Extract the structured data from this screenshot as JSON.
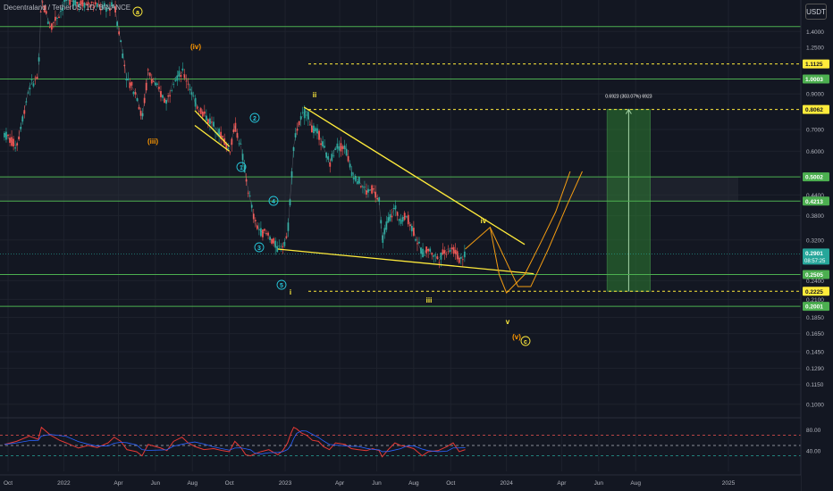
{
  "header": {
    "title": "Decentraland / TetherUS, 1D, BINANCE",
    "currency_button": "USDT"
  },
  "colors": {
    "background": "#131722",
    "level_line": "#4caf50",
    "wedge": "#ffeb3b",
    "projection": "#f39c12",
    "target_box": "#2e7d32",
    "rsi_line": "#e53935",
    "rsi_ma": "#2962ff",
    "up": "#26a69a",
    "down": "#ef5350",
    "wave_count": "#26c6da",
    "wave_minor": "#ffeb3b",
    "wave_major": "#ff9800"
  },
  "chart_data": {
    "type": "line",
    "title": "Decentraland / TetherUS, 1D, BINANCE",
    "xlabel": "",
    "ylabel": "",
    "scale": "log",
    "ylim": [
      0.092,
      1.75
    ],
    "x_ticks": [
      "Oct",
      "2022",
      "Apr",
      "Jun",
      "Aug",
      "Oct",
      "2023",
      "Apr",
      "Jun",
      "Aug",
      "Oct",
      "2024",
      "Apr",
      "Jun",
      "Aug",
      "2025"
    ],
    "y_ticks": [
      "1.4000",
      "1.2500",
      "1.0000",
      "0.9000",
      "0.7000",
      "0.6000",
      "0.4400",
      "0.3800",
      "0.3200",
      "0.2400",
      "0.2100",
      "0.1850",
      "0.1650",
      "0.1450",
      "0.1290",
      "0.1150",
      "0.1000"
    ],
    "highlighted_levels": [
      {
        "value": 1.1125,
        "label": "1.1125",
        "style": "dashed",
        "color": "#ffeb3b"
      },
      {
        "value": 1.0003,
        "label": "1.0003",
        "style": "solid",
        "color": "#4caf50"
      },
      {
        "value": 0.8062,
        "label": "0.8062",
        "style": "dashed",
        "color": "#ffeb3b"
      },
      {
        "value": 0.5002,
        "label": "0.5002",
        "style": "solid",
        "color": "#4caf50"
      },
      {
        "value": 0.4213,
        "label": "0.4213",
        "style": "solid",
        "color": "#4caf50"
      },
      {
        "value": 0.2505,
        "label": "0.2505",
        "style": "solid",
        "color": "#4caf50"
      },
      {
        "value": 0.2225,
        "label": "0.2225",
        "style": "dashed",
        "color": "#ffeb3b"
      },
      {
        "value": 0.2001,
        "label": "0.2001",
        "style": "solid",
        "color": "#4caf50"
      }
    ],
    "current_price": {
      "value": 0.2901,
      "label": "0.2901",
      "countdown": "08:57:25"
    },
    "target_label": "0.6923 (303.07%) 6923",
    "wave_labels": [
      "(iii)",
      "(iv)",
      "1",
      "2",
      "3",
      "4",
      "5",
      "i",
      "ii",
      "iii",
      "iv",
      "v",
      "(v)",
      "c",
      "a"
    ],
    "series": [
      {
        "values": [
          [
            "2021-09-25",
            0.68
          ],
          [
            "2021-10-15",
            0.62
          ],
          [
            "2021-11-05",
            0.95
          ],
          [
            "2021-11-20",
            1.02
          ],
          [
            "2021-11-25",
            1.75
          ],
          [
            "2021-12-10",
            1.45
          ],
          [
            "2021-12-25",
            1.6
          ],
          [
            "2022-01-05",
            1.75
          ],
          [
            "2022-03-15",
            1.65
          ],
          [
            "2022-03-25",
            1.7
          ],
          [
            "2022-04-05",
            1.3
          ],
          [
            "2022-04-15",
            1.0
          ],
          [
            "2022-05-01",
            0.9
          ],
          [
            "2022-05-10",
            0.75
          ],
          [
            "2022-05-20",
            1.05
          ],
          [
            "2022-06-10",
            0.9
          ],
          [
            "2022-06-20",
            0.85
          ],
          [
            "2022-07-01",
            1.0
          ],
          [
            "2022-07-15",
            1.05
          ],
          [
            "2022-07-25",
            0.98
          ],
          [
            "2022-08-05",
            0.85
          ],
          [
            "2022-08-20",
            0.78
          ],
          [
            "2022-09-05",
            0.72
          ],
          [
            "2022-09-20",
            0.66
          ],
          [
            "2022-10-01",
            0.6
          ],
          [
            "2022-10-10",
            0.72
          ],
          [
            "2022-10-20",
            0.62
          ],
          [
            "2022-10-28",
            0.5
          ],
          [
            "2022-11-05",
            0.42
          ],
          [
            "2022-11-12",
            0.36
          ],
          [
            "2022-11-22",
            0.34
          ],
          [
            "2022-12-05",
            0.33
          ],
          [
            "2022-12-20",
            0.3
          ],
          [
            "2022-12-28",
            0.31
          ],
          [
            "2023-01-05",
            0.33
          ],
          [
            "2023-01-10",
            0.45
          ],
          [
            "2023-01-15",
            0.62
          ],
          [
            "2023-01-20",
            0.7
          ],
          [
            "2023-01-28",
            0.76
          ],
          [
            "2023-02-05",
            0.8
          ],
          [
            "2023-02-15",
            0.7
          ],
          [
            "2023-02-25",
            0.68
          ],
          [
            "2023-03-05",
            0.62
          ],
          [
            "2023-03-15",
            0.55
          ],
          [
            "2023-03-25",
            0.62
          ],
          [
            "2023-04-10",
            0.62
          ],
          [
            "2023-04-20",
            0.52
          ],
          [
            "2023-05-01",
            0.49
          ],
          [
            "2023-05-15",
            0.45
          ],
          [
            "2023-05-25",
            0.46
          ],
          [
            "2023-06-05",
            0.42
          ],
          [
            "2023-06-10",
            0.32
          ],
          [
            "2023-06-20",
            0.37
          ],
          [
            "2023-07-01",
            0.4
          ],
          [
            "2023-07-10",
            0.37
          ],
          [
            "2023-07-20",
            0.38
          ],
          [
            "2023-08-01",
            0.34
          ],
          [
            "2023-08-15",
            0.29
          ],
          [
            "2023-08-25",
            0.3
          ],
          [
            "2023-09-10",
            0.28
          ],
          [
            "2023-09-25",
            0.3
          ],
          [
            "2023-10-05",
            0.3
          ],
          [
            "2023-10-15",
            0.28
          ],
          [
            "2023-10-25",
            0.29
          ]
        ]
      }
    ],
    "wedge_lines": [
      [
        [
          "2023-02-01",
          0.82
        ],
        [
          "2024-01-31",
          0.31
        ]
      ],
      [
        [
          "2022-12-20",
          0.3
        ],
        [
          "2024-02-15",
          0.252
        ]
      ],
      [
        [
          "2022-08-05",
          0.8
        ],
        [
          "2022-10-01",
          0.62
        ]
      ],
      [
        [
          "2022-08-05",
          0.72
        ],
        [
          "2022-10-01",
          0.6
        ]
      ]
    ],
    "projection_paths": [
      [
        [
          "2023-10-25",
          0.3
        ],
        [
          "2023-12-05",
          0.35
        ],
        [
          "2023-12-20",
          0.25
        ],
        [
          "2024-01-01",
          0.22
        ],
        [
          "2024-01-31",
          0.2505
        ],
        [
          "2024-02-25",
          0.31
        ],
        [
          "2024-03-22",
          0.39
        ],
        [
          "2024-04-15",
          0.52
        ]
      ],
      [
        [
          "2023-12-05",
          0.35
        ],
        [
          "2024-01-20",
          0.23
        ],
        [
          "2024-02-10",
          0.23
        ],
        [
          "2024-03-10",
          0.3
        ],
        [
          "2024-04-10",
          0.41
        ],
        [
          "2024-05-05",
          0.52
        ]
      ]
    ],
    "target_box": {
      "x_start": "2024-06-15",
      "x_end": "2024-08-25",
      "y_low": 0.2225,
      "y_high": 0.8062
    },
    "rsi": {
      "ylim": [
        0,
        100
      ],
      "y_ticks": [
        80,
        40
      ],
      "levels": [
        70,
        50,
        30
      ],
      "values": [
        [
          "2021-09-25",
          52
        ],
        [
          "2021-10-15",
          58
        ],
        [
          "2021-11-05",
          68
        ],
        [
          "2021-11-20",
          62
        ],
        [
          "2021-11-25",
          85
        ],
        [
          "2021-12-10",
          70
        ],
        [
          "2021-12-25",
          60
        ],
        [
          "2022-01-05",
          55
        ],
        [
          "2022-01-25",
          45
        ],
        [
          "2022-02-10",
          50
        ],
        [
          "2022-02-25",
          46
        ],
        [
          "2022-03-15",
          55
        ],
        [
          "2022-03-25",
          66
        ],
        [
          "2022-04-05",
          58
        ],
        [
          "2022-04-15",
          42
        ],
        [
          "2022-05-01",
          38
        ],
        [
          "2022-05-10",
          30
        ],
        [
          "2022-05-20",
          52
        ],
        [
          "2022-06-10",
          45
        ],
        [
          "2022-06-20",
          40
        ],
        [
          "2022-07-01",
          58
        ],
        [
          "2022-07-15",
          66
        ],
        [
          "2022-07-25",
          55
        ],
        [
          "2022-08-05",
          48
        ],
        [
          "2022-08-20",
          42
        ],
        [
          "2022-09-05",
          44
        ],
        [
          "2022-09-20",
          40
        ],
        [
          "2022-10-01",
          38
        ],
        [
          "2022-10-10",
          58
        ],
        [
          "2022-10-20",
          46
        ],
        [
          "2022-10-28",
          32
        ],
        [
          "2022-11-05",
          30
        ],
        [
          "2022-11-12",
          34
        ],
        [
          "2022-11-22",
          38
        ],
        [
          "2022-12-05",
          42
        ],
        [
          "2022-12-20",
          32
        ],
        [
          "2022-12-28",
          40
        ],
        [
          "2023-01-05",
          55
        ],
        [
          "2023-01-10",
          72
        ],
        [
          "2023-01-15",
          85
        ],
        [
          "2023-01-20",
          82
        ],
        [
          "2023-01-28",
          74
        ],
        [
          "2023-02-05",
          70
        ],
        [
          "2023-02-15",
          60
        ],
        [
          "2023-02-25",
          58
        ],
        [
          "2023-03-05",
          48
        ],
        [
          "2023-03-15",
          42
        ],
        [
          "2023-03-25",
          55
        ],
        [
          "2023-04-10",
          52
        ],
        [
          "2023-04-20",
          44
        ],
        [
          "2023-05-01",
          42
        ],
        [
          "2023-05-15",
          40
        ],
        [
          "2023-05-25",
          44
        ],
        [
          "2023-06-05",
          40
        ],
        [
          "2023-06-10",
          28
        ],
        [
          "2023-06-20",
          42
        ],
        [
          "2023-07-01",
          55
        ],
        [
          "2023-07-10",
          50
        ],
        [
          "2023-07-20",
          48
        ],
        [
          "2023-08-01",
          44
        ],
        [
          "2023-08-15",
          30
        ],
        [
          "2023-08-25",
          38
        ],
        [
          "2023-09-10",
          40
        ],
        [
          "2023-09-25",
          48
        ],
        [
          "2023-10-05",
          55
        ],
        [
          "2023-10-15",
          38
        ],
        [
          "2023-10-25",
          42
        ]
      ]
    }
  }
}
